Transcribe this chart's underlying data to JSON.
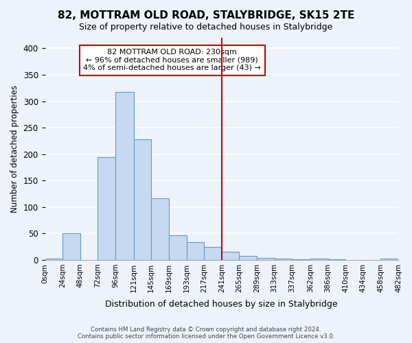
{
  "title": "82, MOTTRAM OLD ROAD, STALYBRIDGE, SK15 2TE",
  "subtitle": "Size of property relative to detached houses in Stalybridge",
  "xlabel": "Distribution of detached houses by size in Stalybridge",
  "ylabel": "Number of detached properties",
  "bar_color": "#c6d9f0",
  "bar_edge_color": "#5b9bd5",
  "background_color": "#eef2fa",
  "grid_color": "#ffffff",
  "vline_x": 241,
  "vline_color": "#cc0000",
  "bin_edges": [
    0,
    24,
    48,
    72,
    96,
    121,
    145,
    169,
    193,
    217,
    241,
    265,
    289,
    313,
    337,
    362,
    386,
    410,
    434,
    458,
    482
  ],
  "bin_labels": [
    "0sqm",
    "24sqm",
    "48sqm",
    "72sqm",
    "96sqm",
    "121sqm",
    "145sqm",
    "169sqm",
    "193sqm",
    "217sqm",
    "241sqm",
    "265sqm",
    "289sqm",
    "313sqm",
    "337sqm",
    "362sqm",
    "386sqm",
    "410sqm",
    "434sqm",
    "458sqm",
    "482sqm"
  ],
  "counts": [
    2,
    51,
    0,
    194,
    317,
    228,
    116,
    46,
    34,
    25,
    15,
    8,
    4,
    2,
    1,
    3,
    1,
    0,
    0,
    2
  ],
  "ylim": [
    0,
    420
  ],
  "yticks": [
    0,
    50,
    100,
    150,
    200,
    250,
    300,
    350,
    400
  ],
  "annotation_title": "82 MOTTRAM OLD ROAD: 230sqm",
  "annotation_line1": "← 96% of detached houses are smaller (989)",
  "annotation_line2": "4% of semi-detached houses are larger (43) →",
  "footer1": "Contains HM Land Registry data © Crown copyright and database right 2024.",
  "footer2": "Contains public sector information licensed under the Open Government Licence v3.0."
}
